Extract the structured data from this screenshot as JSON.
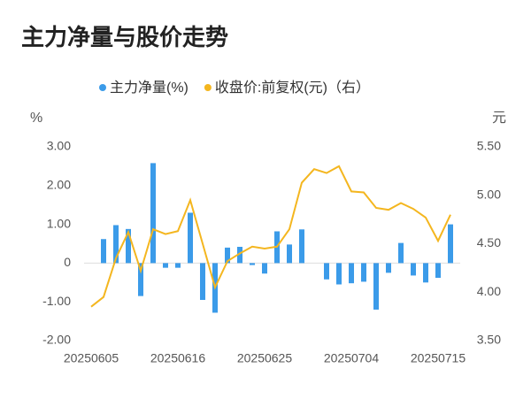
{
  "chart_data": {
    "type": "bar-line",
    "title": "主力净量与股价走势",
    "y_unit": "%",
    "y2_unit": "元",
    "categories": [
      "20250605",
      null,
      null,
      null,
      null,
      null,
      null,
      "20250616",
      null,
      null,
      null,
      null,
      null,
      null,
      "20250625",
      null,
      null,
      null,
      null,
      null,
      null,
      "20250704",
      null,
      null,
      null,
      null,
      null,
      null,
      "20250715",
      null
    ],
    "series": [
      {
        "name": "主力净量(%)",
        "color": "#3b9be9",
        "type": "bar",
        "values": [
          null,
          0.62,
          0.98,
          0.88,
          -0.85,
          2.58,
          -0.12,
          -0.12,
          1.3,
          -0.95,
          -1.28,
          0.4,
          0.42,
          -0.05,
          -0.27,
          0.82,
          0.48,
          0.87,
          0,
          -0.42,
          -0.55,
          -0.52,
          -0.48,
          -1.2,
          -0.25,
          0.52,
          -0.32,
          -0.5,
          -0.38,
          1.0
        ]
      },
      {
        "name": "收盘价:前复权(元)（右）",
        "color": "#f4b61f",
        "type": "line",
        "axis": "y2",
        "values": [
          3.85,
          3.95,
          4.35,
          4.62,
          4.22,
          4.65,
          4.6,
          4.63,
          4.95,
          4.5,
          4.05,
          4.32,
          4.4,
          4.47,
          4.45,
          4.47,
          4.65,
          5.13,
          5.27,
          5.23,
          5.3,
          5.04,
          5.03,
          4.87,
          4.85,
          4.92,
          4.86,
          4.77,
          4.53,
          4.8
        ]
      }
    ],
    "ylim": [
      -2,
      3
    ],
    "yticks": [
      {
        "value": -2,
        "label": "-2.00"
      },
      {
        "value": -1,
        "label": "-1.00"
      },
      0,
      {
        "value": 1,
        "label": "1.00"
      },
      {
        "value": 2,
        "label": "2.00"
      },
      {
        "value": 3,
        "label": "3.00"
      }
    ],
    "y2lim": [
      3.5,
      5.5
    ],
    "y2ticks": [
      {
        "value": 3.5,
        "label": "3.50"
      },
      {
        "value": 4,
        "label": "4.00"
      },
      {
        "value": 4.5,
        "label": "4.50"
      },
      {
        "value": 5,
        "label": "5.00"
      },
      {
        "value": 5.5,
        "label": "5.50"
      }
    ]
  }
}
